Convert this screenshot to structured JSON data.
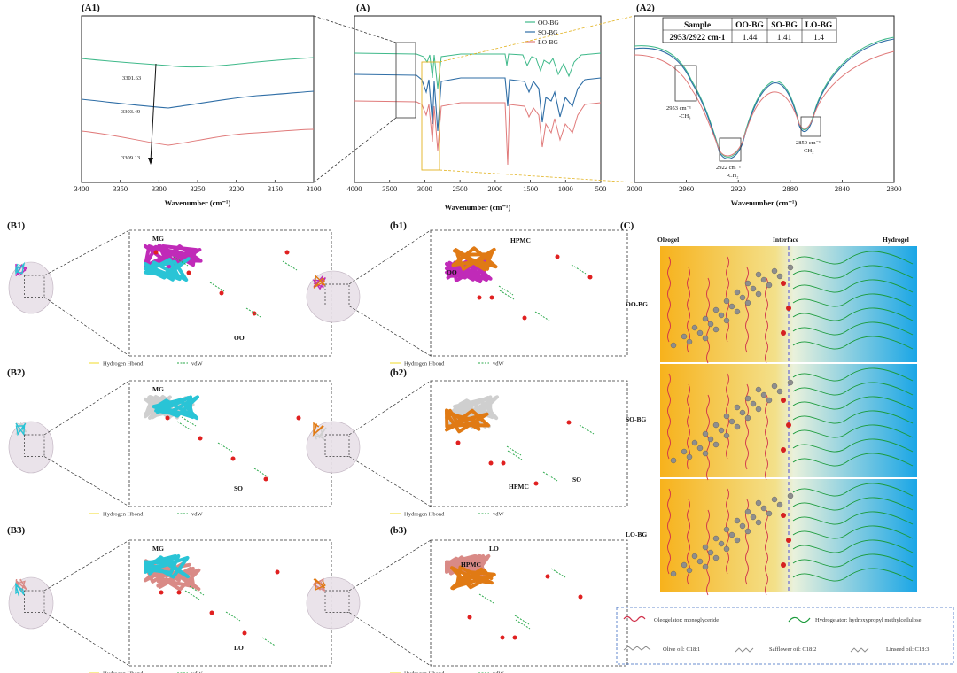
{
  "panel_labels": {
    "A1": "(A1)",
    "A": "(A)",
    "A2": "(A2)",
    "B1": "(B1)",
    "B2": "(B2)",
    "B3": "(B3)",
    "b1": "(b1)",
    "b2": "(b2)",
    "b3": "(b3)",
    "C": "(C)"
  },
  "colors": {
    "oo": "#3fb98a",
    "so": "#2f6ea6",
    "lo": "#e07a7a",
    "mg": "#29c4d6",
    "oo_stick": "#c02ab8",
    "so_stick": "#cfcfcf",
    "lo_stick": "#d98a86",
    "hpmc": "#e07a14",
    "hbond": "#f2e14b",
    "vdw": "#2aa84a"
  },
  "chart_data": [
    {
      "id": "A1",
      "type": "line",
      "title": "(A1)",
      "xlabel": "Wavenumber (cm⁻¹)",
      "ylabel": "",
      "xlim": [
        3400,
        3100
      ],
      "x_ticks": [
        "3400",
        "3350",
        "3300",
        "3250",
        "3200",
        "3150",
        "3100"
      ],
      "series": [
        {
          "name": "OO-BG",
          "peak_wavenumber": 3301.63,
          "peak_label": "3301.63"
        },
        {
          "name": "SO-BG",
          "peak_wavenumber": 3303.49,
          "peak_label": "3303.49"
        },
        {
          "name": "LO-BG",
          "peak_wavenumber": 3309.13,
          "peak_label": "3309.13"
        }
      ]
    },
    {
      "id": "A",
      "type": "line",
      "title": "(A)",
      "xlabel": "Wavenumber (cm⁻¹)",
      "xlim": [
        4000,
        500
      ],
      "x_ticks": [
        "4000",
        "3500",
        "3000",
        "2500",
        "2000",
        "1500",
        "1000",
        "500"
      ],
      "legend": [
        "OO-BG",
        "SO-BG",
        "LO-BG"
      ],
      "legend_position": "top-right"
    },
    {
      "id": "A2",
      "type": "line",
      "title": "(A2)",
      "xlabel": "Wavenumber (cm⁻¹)",
      "xlim": [
        3000,
        2800
      ],
      "x_ticks": [
        "3000",
        "2960",
        "2920",
        "2880",
        "2840",
        "2800"
      ],
      "annotations": [
        {
          "wavenumber": 2953,
          "label": "2953 cm⁻¹",
          "group": "-CH₃"
        },
        {
          "wavenumber": 2922,
          "label": "2922 cm⁻¹",
          "group": "-CH₂"
        },
        {
          "wavenumber": 2850,
          "label": "2850 cm⁻¹",
          "group": "-CH₂"
        }
      ],
      "table": {
        "headers": [
          "Sample",
          "OO-BG",
          "SO-BG",
          "LO-BG"
        ],
        "row_label": "2953/2922 cm-1",
        "values": [
          "1.44",
          "1.41",
          "1.4"
        ]
      }
    }
  ],
  "docking": {
    "legend_hbond": "Hydrogen Hbond",
    "legend_vdw": "vdW",
    "B1": {
      "labels": [
        "MG",
        "OO"
      ]
    },
    "B2": {
      "labels": [
        "MG",
        "SO"
      ]
    },
    "B3": {
      "labels": [
        "MG",
        "LO"
      ]
    },
    "b1": {
      "labels": [
        "HPMC",
        "OO"
      ]
    },
    "b2": {
      "labels": [
        "HPMC",
        "SO"
      ]
    },
    "b3": {
      "labels": [
        "LO",
        "HPMC"
      ]
    }
  },
  "panel_c": {
    "headers": [
      "Oleogel",
      "Interface",
      "Hydrogel"
    ],
    "rows": [
      "OO-BG",
      "SO-BG",
      "LO-BG"
    ],
    "legend": {
      "oleogelator": "Oleogelator: monoglyceride",
      "hydrogelator": "Hydrogelator: hydroxypropyl methylcellulose",
      "olive": "Olive oil: C18:1",
      "safflower": "Safflower oil: C18:2",
      "linseed": "Linseed oil: C18:3"
    }
  }
}
